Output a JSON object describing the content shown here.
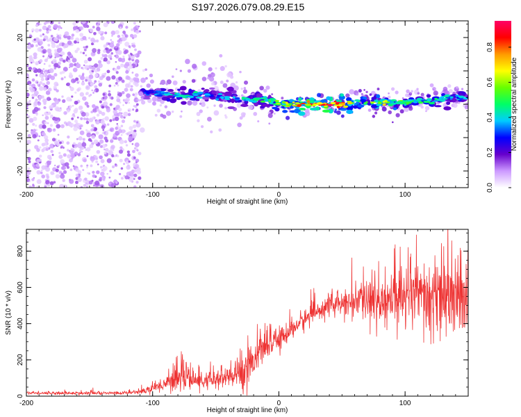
{
  "chart_data": [
    {
      "type": "heatmap",
      "title": "S197.2026.079.08.29.E15",
      "xlabel": "Height of straight line (km)",
      "ylabel": "Frequency (Hz)",
      "xlim": [
        -200,
        150
      ],
      "ylim": [
        -25,
        25
      ],
      "x_ticks": [
        "-200",
        "-100",
        "0",
        "100"
      ],
      "x_tick_values": [
        -200,
        -100,
        0,
        100
      ],
      "y_ticks": [
        "-20",
        "-10",
        "0",
        "10",
        "20"
      ],
      "y_tick_values": [
        -20,
        -10,
        0,
        10,
        20
      ],
      "colorbar": {
        "label": "Normalized spectral amplitude",
        "range": [
          0,
          0.95
        ],
        "ticks": [
          "0.0",
          "0.2",
          "0.4",
          "0.6",
          "0.8"
        ],
        "tick_values": [
          0.0,
          0.2,
          0.4,
          0.6,
          0.8
        ],
        "colormap": [
          "#ffffff",
          "#cc99ff",
          "#6600cc",
          "#0000ff",
          "#00ccff",
          "#00ff66",
          "#66ff00",
          "#ffff00",
          "#ff9900",
          "#ff0000",
          "#ff0066"
        ]
      },
      "noise_region": {
        "x_range": [
          -200,
          -110
        ],
        "y_range": [
          -25,
          25
        ],
        "amplitude": 0.15
      },
      "ridge": {
        "x": [
          -110,
          -100,
          -90,
          -80,
          -70,
          -60,
          -50,
          -40,
          -30,
          -20,
          -10,
          0,
          10,
          20,
          30,
          40,
          50,
          60,
          70,
          80,
          90,
          100,
          110,
          120,
          130,
          140,
          150
        ],
        "freq": [
          4,
          3.5,
          3,
          2.5,
          2.5,
          3,
          2.5,
          2,
          1.5,
          1.5,
          1.5,
          0,
          0,
          0,
          0,
          0,
          0,
          0.5,
          0.5,
          0.5,
          0.5,
          0.5,
          1,
          1,
          1.5,
          2,
          2
        ],
        "amplitude": [
          0.3,
          0.35,
          0.4,
          0.45,
          0.5,
          0.4,
          0.35,
          0.4,
          0.45,
          0.5,
          0.5,
          0.6,
          0.75,
          0.85,
          0.9,
          0.95,
          0.85,
          0.6,
          0.6,
          0.7,
          0.6,
          0.55,
          0.5,
          0.5,
          0.45,
          0.4,
          0.4
        ]
      }
    },
    {
      "type": "line",
      "xlabel": "Height of straight line (km)",
      "ylabel": "SNR (10 * v/v)",
      "xlim": [
        -200,
        150
      ],
      "ylim": [
        0,
        920
      ],
      "x_ticks": [
        "-200",
        "-100",
        "0",
        "100"
      ],
      "x_tick_values": [
        -200,
        -100,
        0,
        100
      ],
      "y_ticks": [
        "0",
        "200",
        "400",
        "600",
        "800"
      ],
      "y_tick_values": [
        0,
        200,
        400,
        600,
        800
      ],
      "color": "#ee3333",
      "series": [
        {
          "name": "SNR",
          "x": [
            -200,
            -180,
            -160,
            -140,
            -120,
            -110,
            -100,
            -90,
            -80,
            -75,
            -70,
            -60,
            -50,
            -40,
            -30,
            -25,
            -20,
            -10,
            0,
            10,
            20,
            30,
            40,
            50,
            60,
            70,
            80,
            90,
            100,
            110,
            120,
            130,
            140,
            150
          ],
          "values": [
            18,
            17,
            16,
            16,
            18,
            25,
            45,
            70,
            95,
            120,
            90,
            80,
            90,
            100,
            130,
            170,
            210,
            270,
            310,
            370,
            420,
            470,
            500,
            510,
            520,
            530,
            520,
            530,
            540,
            540,
            520,
            530,
            520,
            510
          ],
          "spread": [
            8,
            8,
            8,
            8,
            8,
            12,
            25,
            40,
            60,
            90,
            55,
            40,
            55,
            70,
            90,
            110,
            90,
            70,
            60,
            55,
            55,
            50,
            55,
            60,
            80,
            120,
            150,
            140,
            150,
            180,
            200,
            200,
            180,
            160
          ]
        }
      ]
    }
  ]
}
